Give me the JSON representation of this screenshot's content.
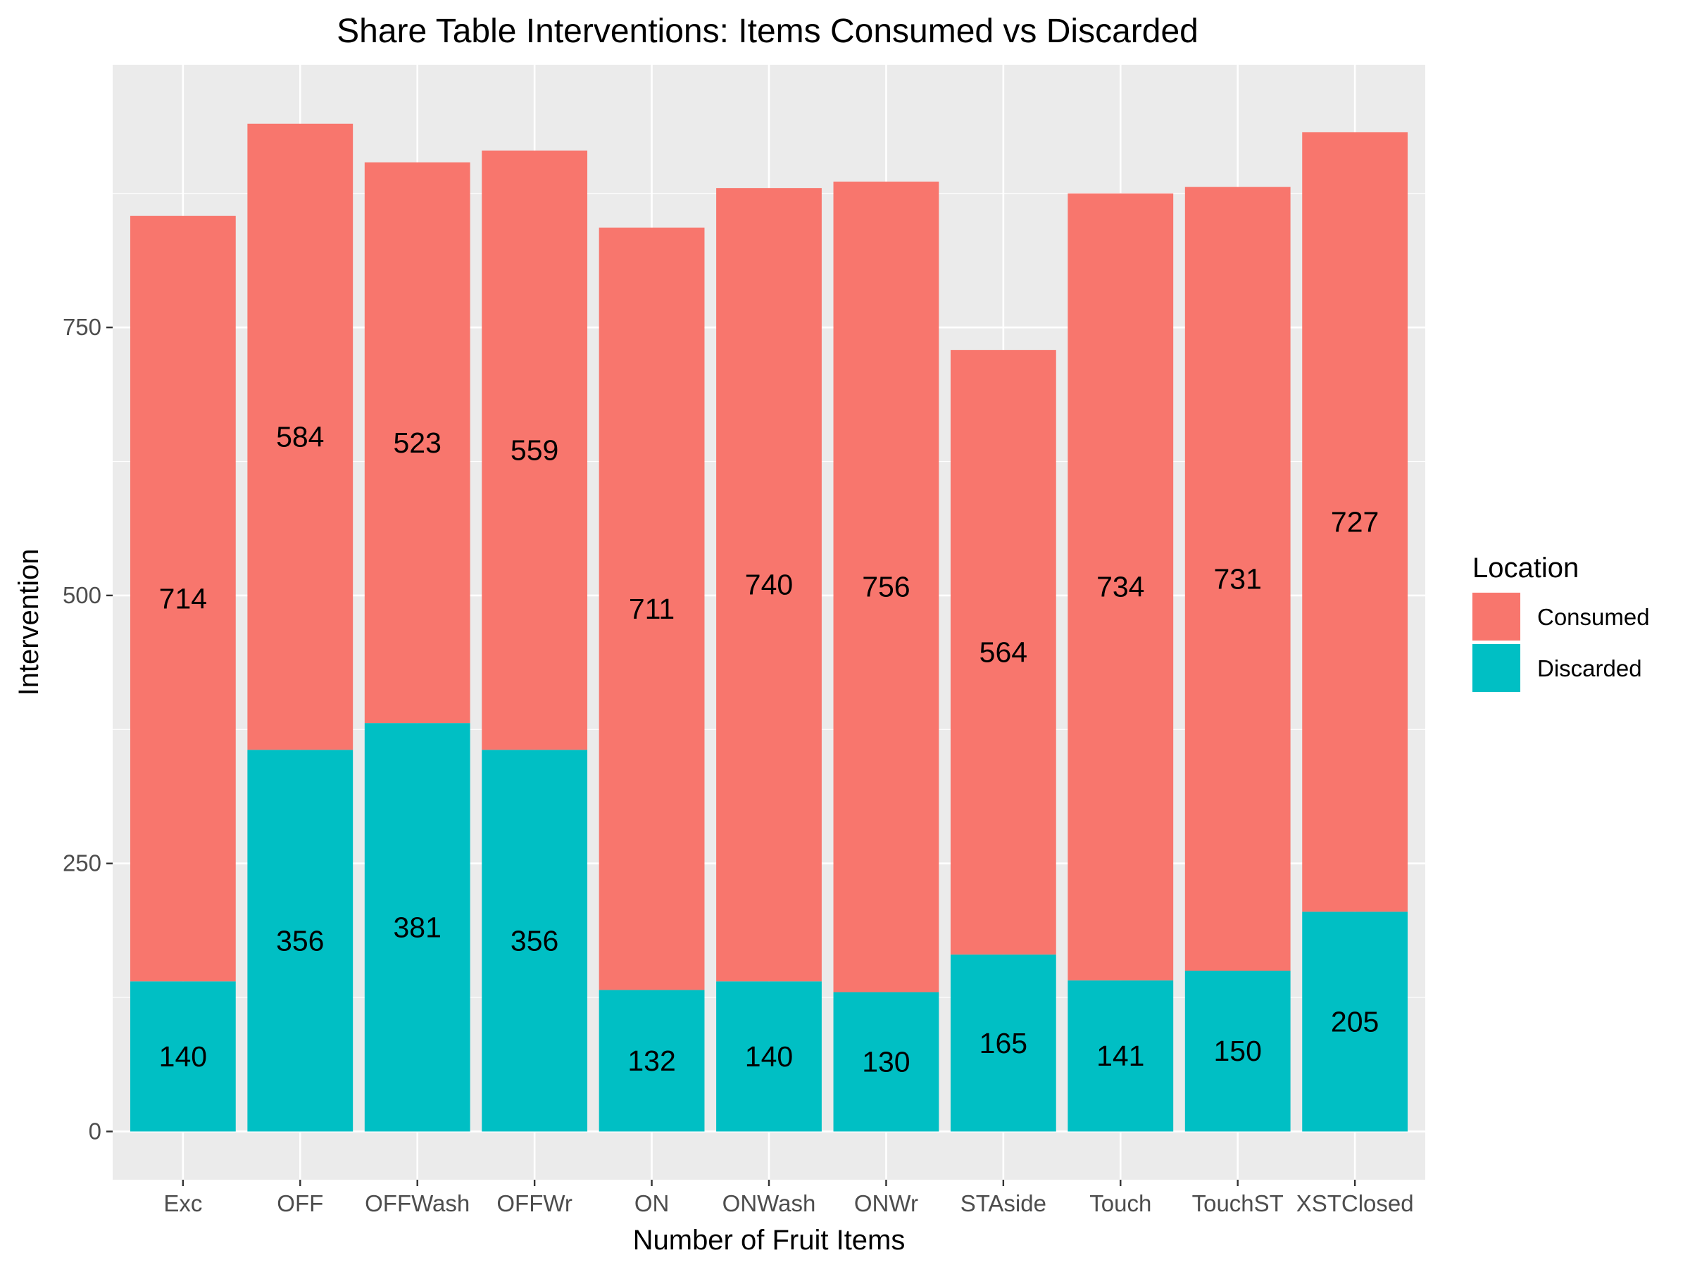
{
  "chart_data": {
    "type": "bar",
    "stacked": true,
    "title": "Share Table Interventions: Items Consumed vs Discarded",
    "xlabel": "Number of Fruit Items",
    "ylabel": "Intervention",
    "ylim": [
      -45,
      995
    ],
    "yticks": [
      0,
      250,
      500,
      750
    ],
    "grid": true,
    "legend_position": "right",
    "categories": [
      "Exc",
      "OFF",
      "OFFWash",
      "OFFWr",
      "ON",
      "ONWash",
      "ONWr",
      "STAside",
      "Touch",
      "TouchST",
      "XSTClosed"
    ],
    "series": [
      {
        "name": "Discarded",
        "color": "#00BFC4",
        "values": [
          140,
          356,
          381,
          356,
          132,
          140,
          130,
          165,
          141,
          150,
          205
        ]
      },
      {
        "name": "Consumed",
        "color": "#F8766D",
        "values": [
          714,
          584,
          523,
          559,
          711,
          740,
          756,
          564,
          734,
          731,
          727
        ]
      }
    ],
    "legend": {
      "title": "Location",
      "entries": [
        {
          "label": "Consumed",
          "color": "#F8766D"
        },
        {
          "label": "Discarded",
          "color": "#00BFC4"
        }
      ]
    }
  }
}
